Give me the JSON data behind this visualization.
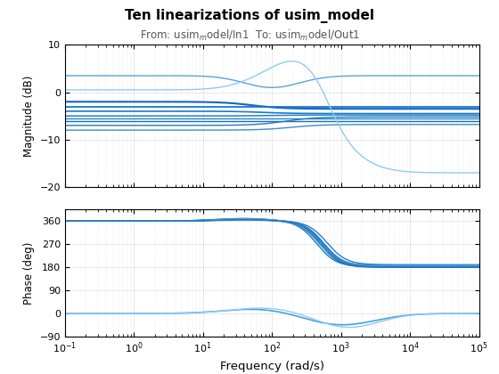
{
  "title": "Ten linearizations of usim_model",
  "subtitle_pre": "From: usim",
  "subtitle_sub": "m",
  "subtitle_mid": "odel/In1  To: usim",
  "subtitle_mid2": "m",
  "subtitle_post": "odel/Out1",
  "xlabel": "Frequency (rad/s)",
  "ylabel_mag": "Magnitude (dB)",
  "ylabel_phase": "Phase (deg)",
  "freq_range": [
    0.1,
    100000
  ],
  "mag_ylim": [
    -20,
    10
  ],
  "phase_ylim": [
    -90,
    405
  ],
  "phase_yticks": [
    -90,
    0,
    90,
    180,
    270,
    360
  ],
  "mag_yticks": [
    -20,
    -10,
    0,
    10
  ],
  "xticks": [
    0.1,
    1.0,
    10.0,
    100.0,
    1000.0,
    10000.0,
    100000.0
  ]
}
